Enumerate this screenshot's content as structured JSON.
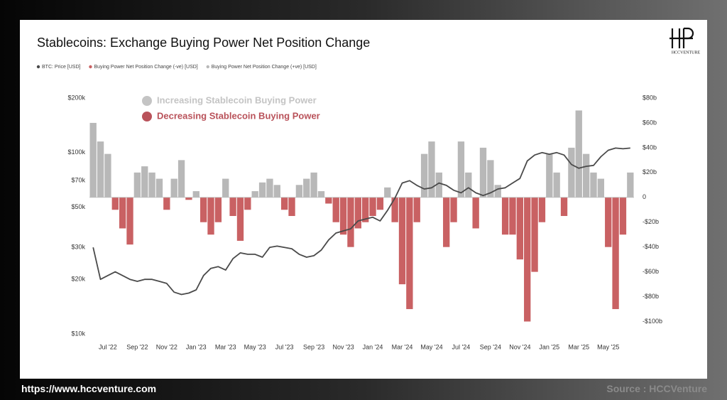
{
  "chart_data": {
    "type": "combo",
    "title": "Stablecoins: Exchange Buying Power Net Position Change",
    "categories": [
      null,
      null,
      "Jul '22",
      null,
      null,
      null,
      "Sep '22",
      null,
      null,
      null,
      "Nov '22",
      null,
      null,
      null,
      "Jan '23",
      null,
      null,
      null,
      "Mar '23",
      null,
      null,
      null,
      "May '23",
      null,
      null,
      null,
      "Jul '23",
      null,
      null,
      null,
      "Sep '23",
      null,
      null,
      null,
      "Nov '23",
      null,
      null,
      null,
      "Jan '24",
      null,
      null,
      null,
      "Mar '24",
      null,
      null,
      null,
      "May '24",
      null,
      null,
      null,
      "Jul '24",
      null,
      null,
      null,
      "Sep '24",
      null,
      null,
      null,
      "Nov '24",
      null,
      null,
      null,
      "Jan '25",
      null,
      null,
      null,
      "Mar '25",
      null,
      null,
      null,
      "May '25",
      null,
      null,
      null
    ],
    "series": [
      {
        "name": "BTC: Price [USD]",
        "type": "line",
        "axis": "y",
        "color": "#4a4a4a",
        "values": [
          30000,
          20000,
          21000,
          22000,
          21000,
          20000,
          19500,
          20000,
          20000,
          19500,
          19000,
          17000,
          16500,
          16800,
          17500,
          21000,
          23000,
          23500,
          22500,
          26000,
          28000,
          27500,
          27500,
          26500,
          30000,
          30500,
          30000,
          29500,
          27500,
          26500,
          27000,
          29000,
          33000,
          36000,
          37000,
          38000,
          42000,
          43000,
          44000,
          42000,
          48000,
          56000,
          68000,
          70000,
          66000,
          63000,
          64000,
          68000,
          66000,
          62000,
          60000,
          64000,
          60000,
          58000,
          60000,
          63000,
          64000,
          68000,
          72000,
          90000,
          97000,
          100000,
          98000,
          100000,
          97000,
          86000,
          82000,
          84000,
          85000,
          95000,
          103000,
          106000,
          105000,
          106000
        ]
      },
      {
        "name": "Buying Power Net Position Change (-ve) [USD]",
        "type": "bar",
        "axis": "y2",
        "color": "#c96163",
        "values": [
          null,
          null,
          null,
          -10,
          -25,
          -38,
          null,
          null,
          null,
          null,
          -10,
          null,
          null,
          -2,
          null,
          -20,
          -30,
          -20,
          null,
          -15,
          -35,
          -10,
          null,
          null,
          null,
          null,
          -10,
          -15,
          null,
          null,
          null,
          null,
          -5,
          -20,
          -30,
          -40,
          -25,
          -20,
          -15,
          -10,
          null,
          -20,
          -70,
          -90,
          -20,
          null,
          null,
          null,
          -40,
          -20,
          null,
          null,
          -25,
          null,
          null,
          null,
          -30,
          -30,
          -50,
          -100,
          -60,
          -20,
          null,
          null,
          -15,
          null,
          null,
          null,
          null,
          null,
          -40,
          -90,
          -30,
          null
        ]
      },
      {
        "name": "Buying Power Net Position Change (+ve) [USD]",
        "type": "bar",
        "axis": "y2",
        "color": "#b8b8b8",
        "values": [
          60,
          45,
          35,
          null,
          null,
          null,
          20,
          25,
          20,
          15,
          null,
          15,
          30,
          null,
          5,
          null,
          null,
          null,
          15,
          null,
          null,
          null,
          5,
          12,
          15,
          10,
          null,
          null,
          10,
          15,
          20,
          5,
          null,
          null,
          null,
          null,
          null,
          null,
          null,
          null,
          8,
          null,
          null,
          null,
          null,
          35,
          45,
          20,
          null,
          null,
          45,
          20,
          null,
          40,
          30,
          10,
          null,
          null,
          null,
          null,
          null,
          null,
          35,
          20,
          null,
          40,
          70,
          35,
          20,
          15,
          null,
          null,
          null,
          20
        ]
      }
    ],
    "ylim": [
      10000,
      200000
    ],
    "log_scale": true,
    "yticks": [
      {
        "value": 10000,
        "label": "$10k"
      },
      {
        "value": 20000,
        "label": "$20k"
      },
      {
        "value": 30000,
        "label": "$30k"
      },
      {
        "value": 50000,
        "label": "$50k"
      },
      {
        "value": 70000,
        "label": "$70k"
      },
      {
        "value": 100000,
        "label": "$100k"
      },
      {
        "value": 200000,
        "label": "$200k"
      }
    ],
    "y2lim": [
      -110,
      80
    ],
    "y2ticks": [
      {
        "value": 80,
        "label": "$80b"
      },
      {
        "value": 60,
        "label": "$60b"
      },
      {
        "value": 40,
        "label": "$40b"
      },
      {
        "value": 20,
        "label": "$20b"
      },
      0,
      {
        "value": -20,
        "label": "-$20b"
      },
      {
        "value": -40,
        "label": "-$40b"
      },
      {
        "value": -60,
        "label": "-$60b"
      },
      {
        "value": -80,
        "label": "-$80b"
      },
      {
        "value": -100,
        "label": "-$100b"
      }
    ],
    "grid": false,
    "annotations": [
      {
        "text": "Increasing Stablecoin Buying Power",
        "color": "#c4c4c4"
      },
      {
        "text": "Decreasing Stablecoin Buying Power",
        "color": "#b9525a"
      }
    ]
  },
  "logo": "HCCVENTURE",
  "footer": {
    "url": "https://www.hccventure.com",
    "source": "Source : HCCVenture"
  }
}
